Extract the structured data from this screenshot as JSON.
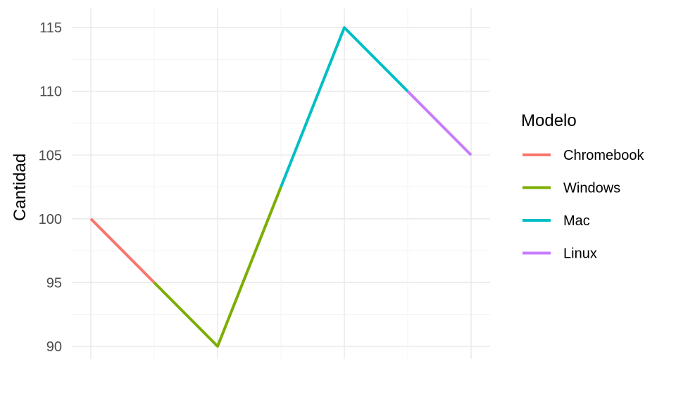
{
  "chart_data": {
    "type": "line",
    "title": "",
    "xlabel": "",
    "ylabel": "Cantidad",
    "x_index": [
      1,
      2,
      3,
      4,
      5,
      6,
      7
    ],
    "values": [
      100,
      95,
      90,
      102.5,
      115,
      110,
      105
    ],
    "ylim": [
      89,
      116.5
    ],
    "y_ticks": [
      90,
      95,
      100,
      105,
      110,
      115
    ],
    "grid": true,
    "legend": {
      "title": "Modelo",
      "placement": "right"
    },
    "series": [
      {
        "name": "Chromebook",
        "color": "#F8766D",
        "points": [
          [
            1,
            100
          ],
          [
            2,
            95
          ]
        ]
      },
      {
        "name": "Windows",
        "color": "#7CAE00",
        "points": [
          [
            2,
            95
          ],
          [
            3,
            90
          ],
          [
            4,
            102.5
          ]
        ]
      },
      {
        "name": "Mac",
        "color": "#00BFC4",
        "points": [
          [
            4,
            102.5
          ],
          [
            5,
            115
          ],
          [
            6,
            110
          ]
        ]
      },
      {
        "name": "Linux",
        "color": "#C77CFF",
        "points": [
          [
            6,
            110
          ],
          [
            7,
            105
          ]
        ]
      }
    ]
  }
}
